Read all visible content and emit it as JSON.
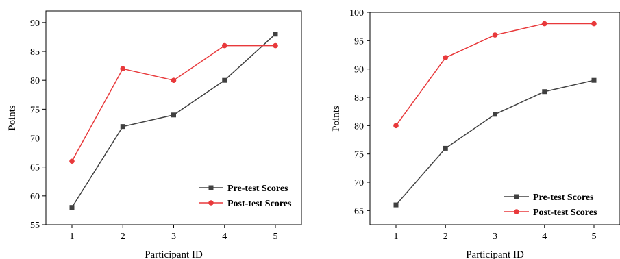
{
  "chart_data": [
    {
      "type": "line",
      "categories": [
        "1",
        "2",
        "3",
        "4",
        "5"
      ],
      "xlabel": "Participant ID",
      "ylabel": "Points",
      "ylim": [
        55,
        92
      ],
      "yticks": [
        55,
        60,
        65,
        70,
        75,
        80,
        85,
        90
      ],
      "grid": false,
      "legend_position": "bottom-right",
      "series": [
        {
          "name": "Pre-test Scores",
          "values": [
            58,
            72,
            74,
            80,
            88
          ],
          "color": "#404040",
          "marker": "square"
        },
        {
          "name": "Post-test Scores",
          "values": [
            66,
            82,
            80,
            86,
            86
          ],
          "color": "#e8393b",
          "marker": "circle"
        }
      ]
    },
    {
      "type": "line",
      "categories": [
        "1",
        "2",
        "3",
        "4",
        "5"
      ],
      "xlabel": "Participant ID",
      "ylabel": "Points",
      "ylim": [
        62.5,
        100
      ],
      "yticks": [
        65,
        70,
        75,
        80,
        85,
        90,
        95,
        100
      ],
      "grid": false,
      "legend_position": "bottom-right",
      "series": [
        {
          "name": "Pre-test Scores",
          "values": [
            66,
            76,
            82,
            86,
            88
          ],
          "color": "#404040",
          "marker": "square"
        },
        {
          "name": "Post-test Scores",
          "values": [
            80,
            92,
            96,
            98,
            98
          ],
          "color": "#e8393b",
          "marker": "circle"
        }
      ]
    }
  ]
}
